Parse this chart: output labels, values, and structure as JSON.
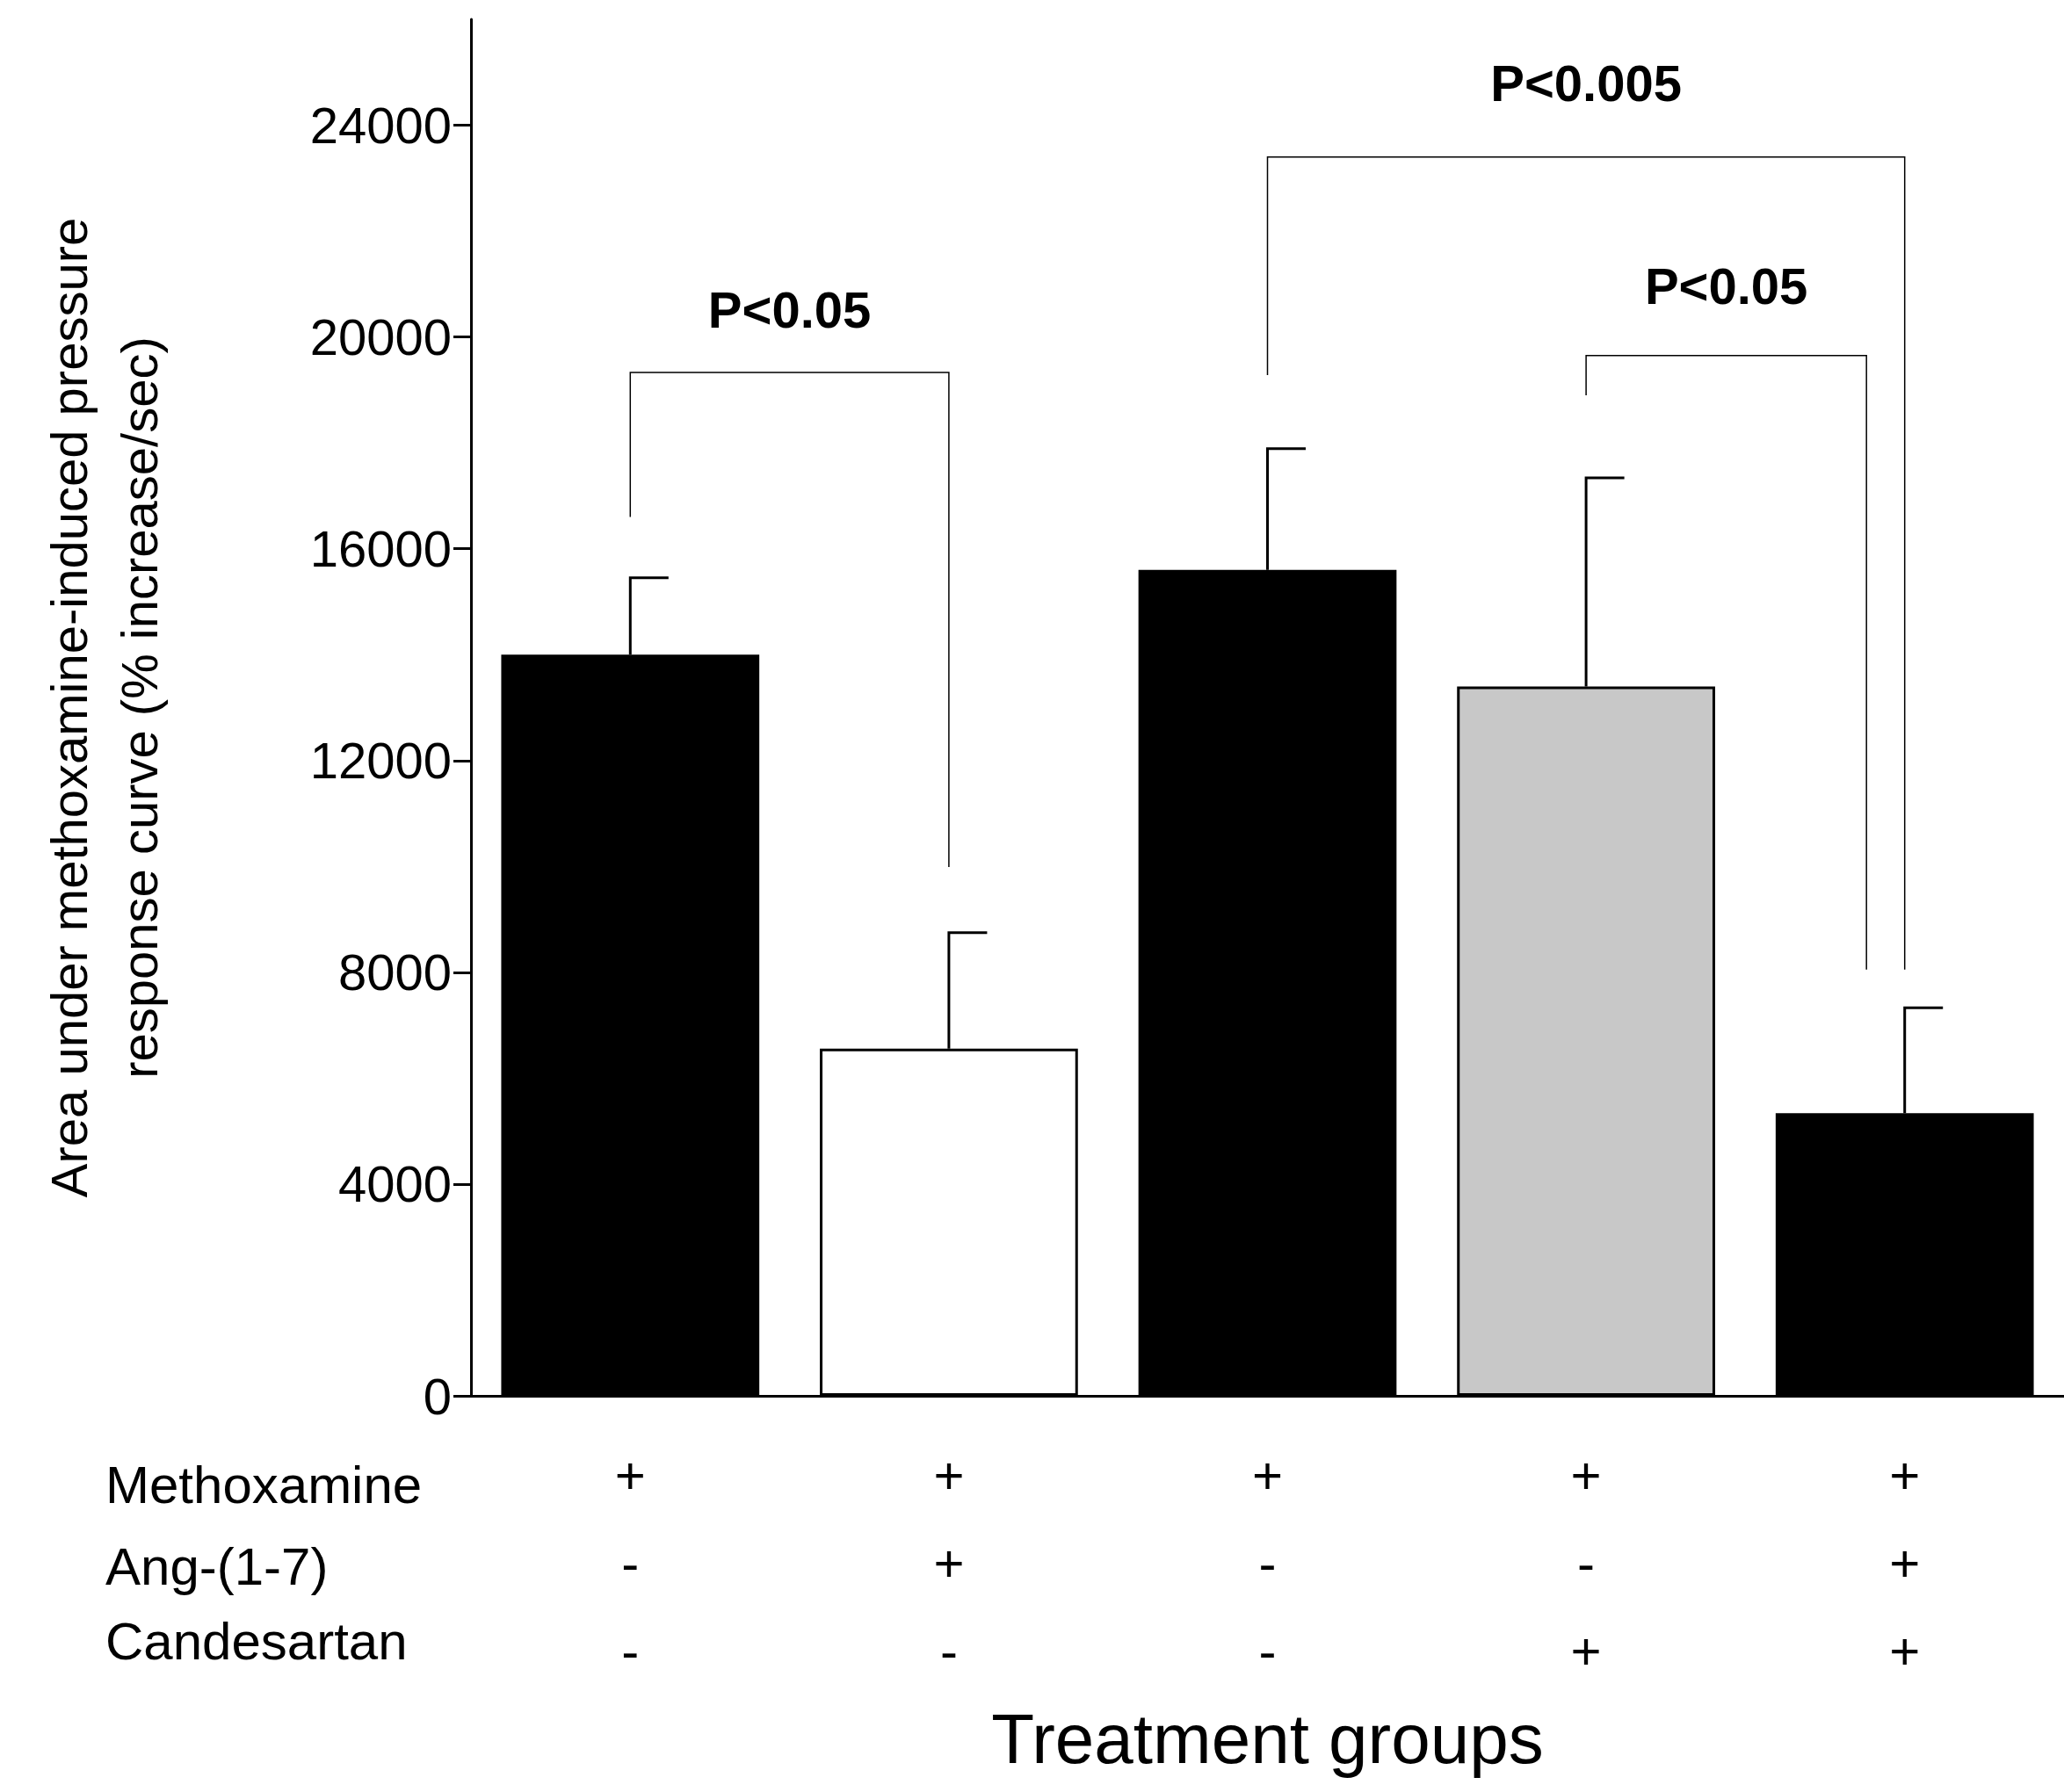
{
  "chart_data": {
    "type": "bar",
    "ylabel": "Area under methoxamine-induced pressure\nresponse curve (% increase/sec)",
    "xlabel": "Treatment groups",
    "categories": [
      "+\n-\n-",
      "+\n+\n-",
      "+\n-\n-",
      "+\n-\n+",
      "+\n+\n+"
    ],
    "values": [
      14000,
      6560,
      15600,
      13400,
      5340
    ],
    "colors": [
      "#000000",
      "#ffffff",
      "#000000",
      "#c8c8c8",
      "#000000"
    ],
    "errors": [
      [
        14000,
        15450
      ],
      [
        6560,
        8750
      ],
      [
        15600,
        17890
      ],
      [
        13400,
        17340
      ],
      [
        5340,
        7330
      ]
    ],
    "grid": false,
    "ylim": [
      0,
      26000
    ],
    "yticks": [
      0,
      4000,
      8000,
      12000,
      16000,
      20000,
      24000
    ],
    "annotations": [
      "Methoxamine",
      "Ang-(1-7)",
      "Candesartan",
      "P<0.05",
      "P<0.005",
      "P<0.05"
    ]
  }
}
